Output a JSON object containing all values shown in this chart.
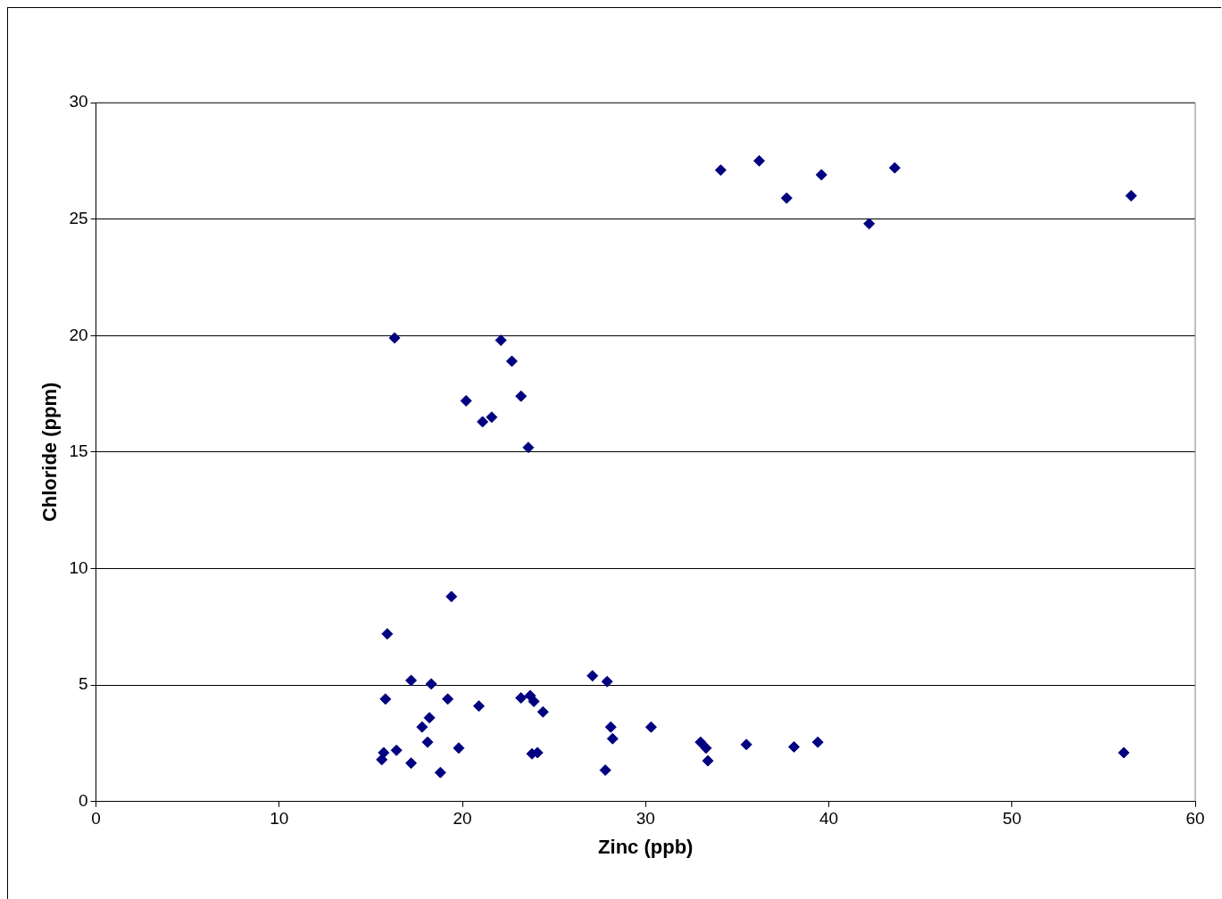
{
  "chart_data": {
    "type": "scatter",
    "xlabel": "Zinc (ppb)",
    "ylabel": "Chloride (ppm)",
    "xlim": [
      0,
      60
    ],
    "xticks": [
      0,
      10,
      20,
      30,
      40,
      50,
      60
    ],
    "ylim": [
      0,
      30
    ],
    "yticks": [
      0,
      5,
      10,
      15,
      20,
      25,
      30
    ],
    "grid": "y",
    "legend": false,
    "marker": "diamond",
    "series": [
      {
        "color": "#000080",
        "x": [
          34.1,
          36.2,
          37.7,
          39.6,
          42.2,
          43.6,
          56.5,
          16.3,
          22.1,
          22.7,
          20.2,
          23.2,
          21.1,
          21.6,
          23.6,
          19.4,
          15.9,
          17.2,
          18.3,
          15.8,
          19.2,
          20.9,
          23.2,
          23.7,
          23.9,
          24.4,
          27.1,
          27.9,
          18.2,
          17.8,
          18.1,
          19.8,
          15.7,
          15.6,
          16.4,
          17.2,
          18.8,
          23.8,
          24.1,
          28.1,
          28.2,
          27.8,
          30.3,
          33.0,
          33.3,
          33.4,
          35.5,
          38.1,
          39.4,
          56.1
        ],
        "values": [
          27.1,
          27.5,
          25.9,
          26.9,
          24.8,
          27.2,
          26.0,
          19.9,
          19.8,
          18.9,
          17.2,
          17.4,
          16.3,
          16.5,
          15.2,
          8.8,
          7.2,
          5.2,
          5.05,
          4.4,
          4.4,
          4.1,
          4.45,
          4.55,
          4.3,
          3.85,
          5.4,
          5.15,
          3.6,
          3.2,
          2.55,
          2.3,
          2.1,
          1.8,
          2.2,
          1.65,
          1.25,
          2.05,
          2.1,
          3.2,
          2.7,
          1.35,
          3.2,
          2.55,
          2.3,
          1.75,
          2.45,
          2.35,
          2.55,
          2.1
        ]
      }
    ]
  }
}
